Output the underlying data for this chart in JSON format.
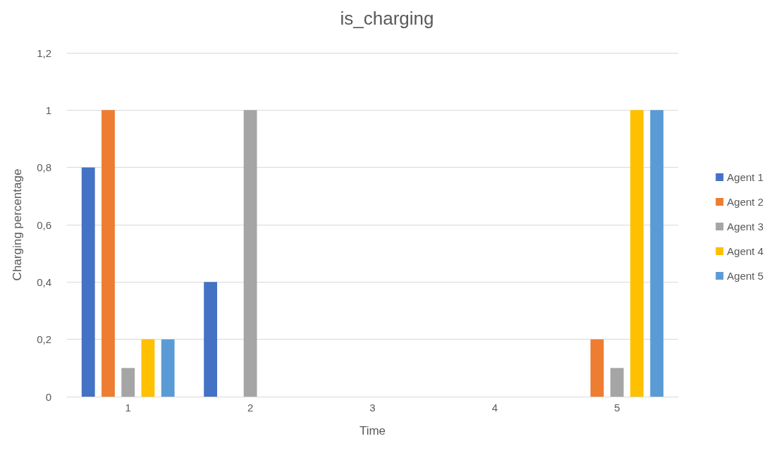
{
  "chart_data": {
    "type": "bar",
    "title": "is_charging",
    "xlabel": "Time",
    "ylabel": "Charging percentage",
    "categories": [
      "1",
      "2",
      "3",
      "4",
      "5"
    ],
    "series": [
      {
        "name": "Agent 1",
        "color": "#4472c4",
        "values": [
          0.8,
          0.4,
          0,
          0,
          0
        ]
      },
      {
        "name": "Agent 2",
        "color": "#ed7d31",
        "values": [
          1,
          0,
          0,
          0,
          0.2
        ]
      },
      {
        "name": "Agent 3",
        "color": "#a5a5a5",
        "values": [
          0.1,
          1,
          0,
          0,
          0.1
        ]
      },
      {
        "name": "Agent 4",
        "color": "#ffc000",
        "values": [
          0.2,
          0,
          0,
          0,
          1
        ]
      },
      {
        "name": "Agent 5",
        "color": "#5b9bd5",
        "values": [
          0.2,
          0,
          0,
          0,
          1
        ]
      }
    ],
    "ylim": [
      0,
      1.2
    ],
    "yticks": [
      0,
      {
        "value": 0.2,
        "label": "0,2"
      },
      {
        "value": 0.4,
        "label": "0,4"
      },
      {
        "value": 0.6,
        "label": "0,6"
      },
      {
        "value": 0.8,
        "label": "0,8"
      },
      1,
      {
        "value": 1.2,
        "label": "1,2"
      }
    ],
    "grid": "y",
    "legend": "right"
  }
}
